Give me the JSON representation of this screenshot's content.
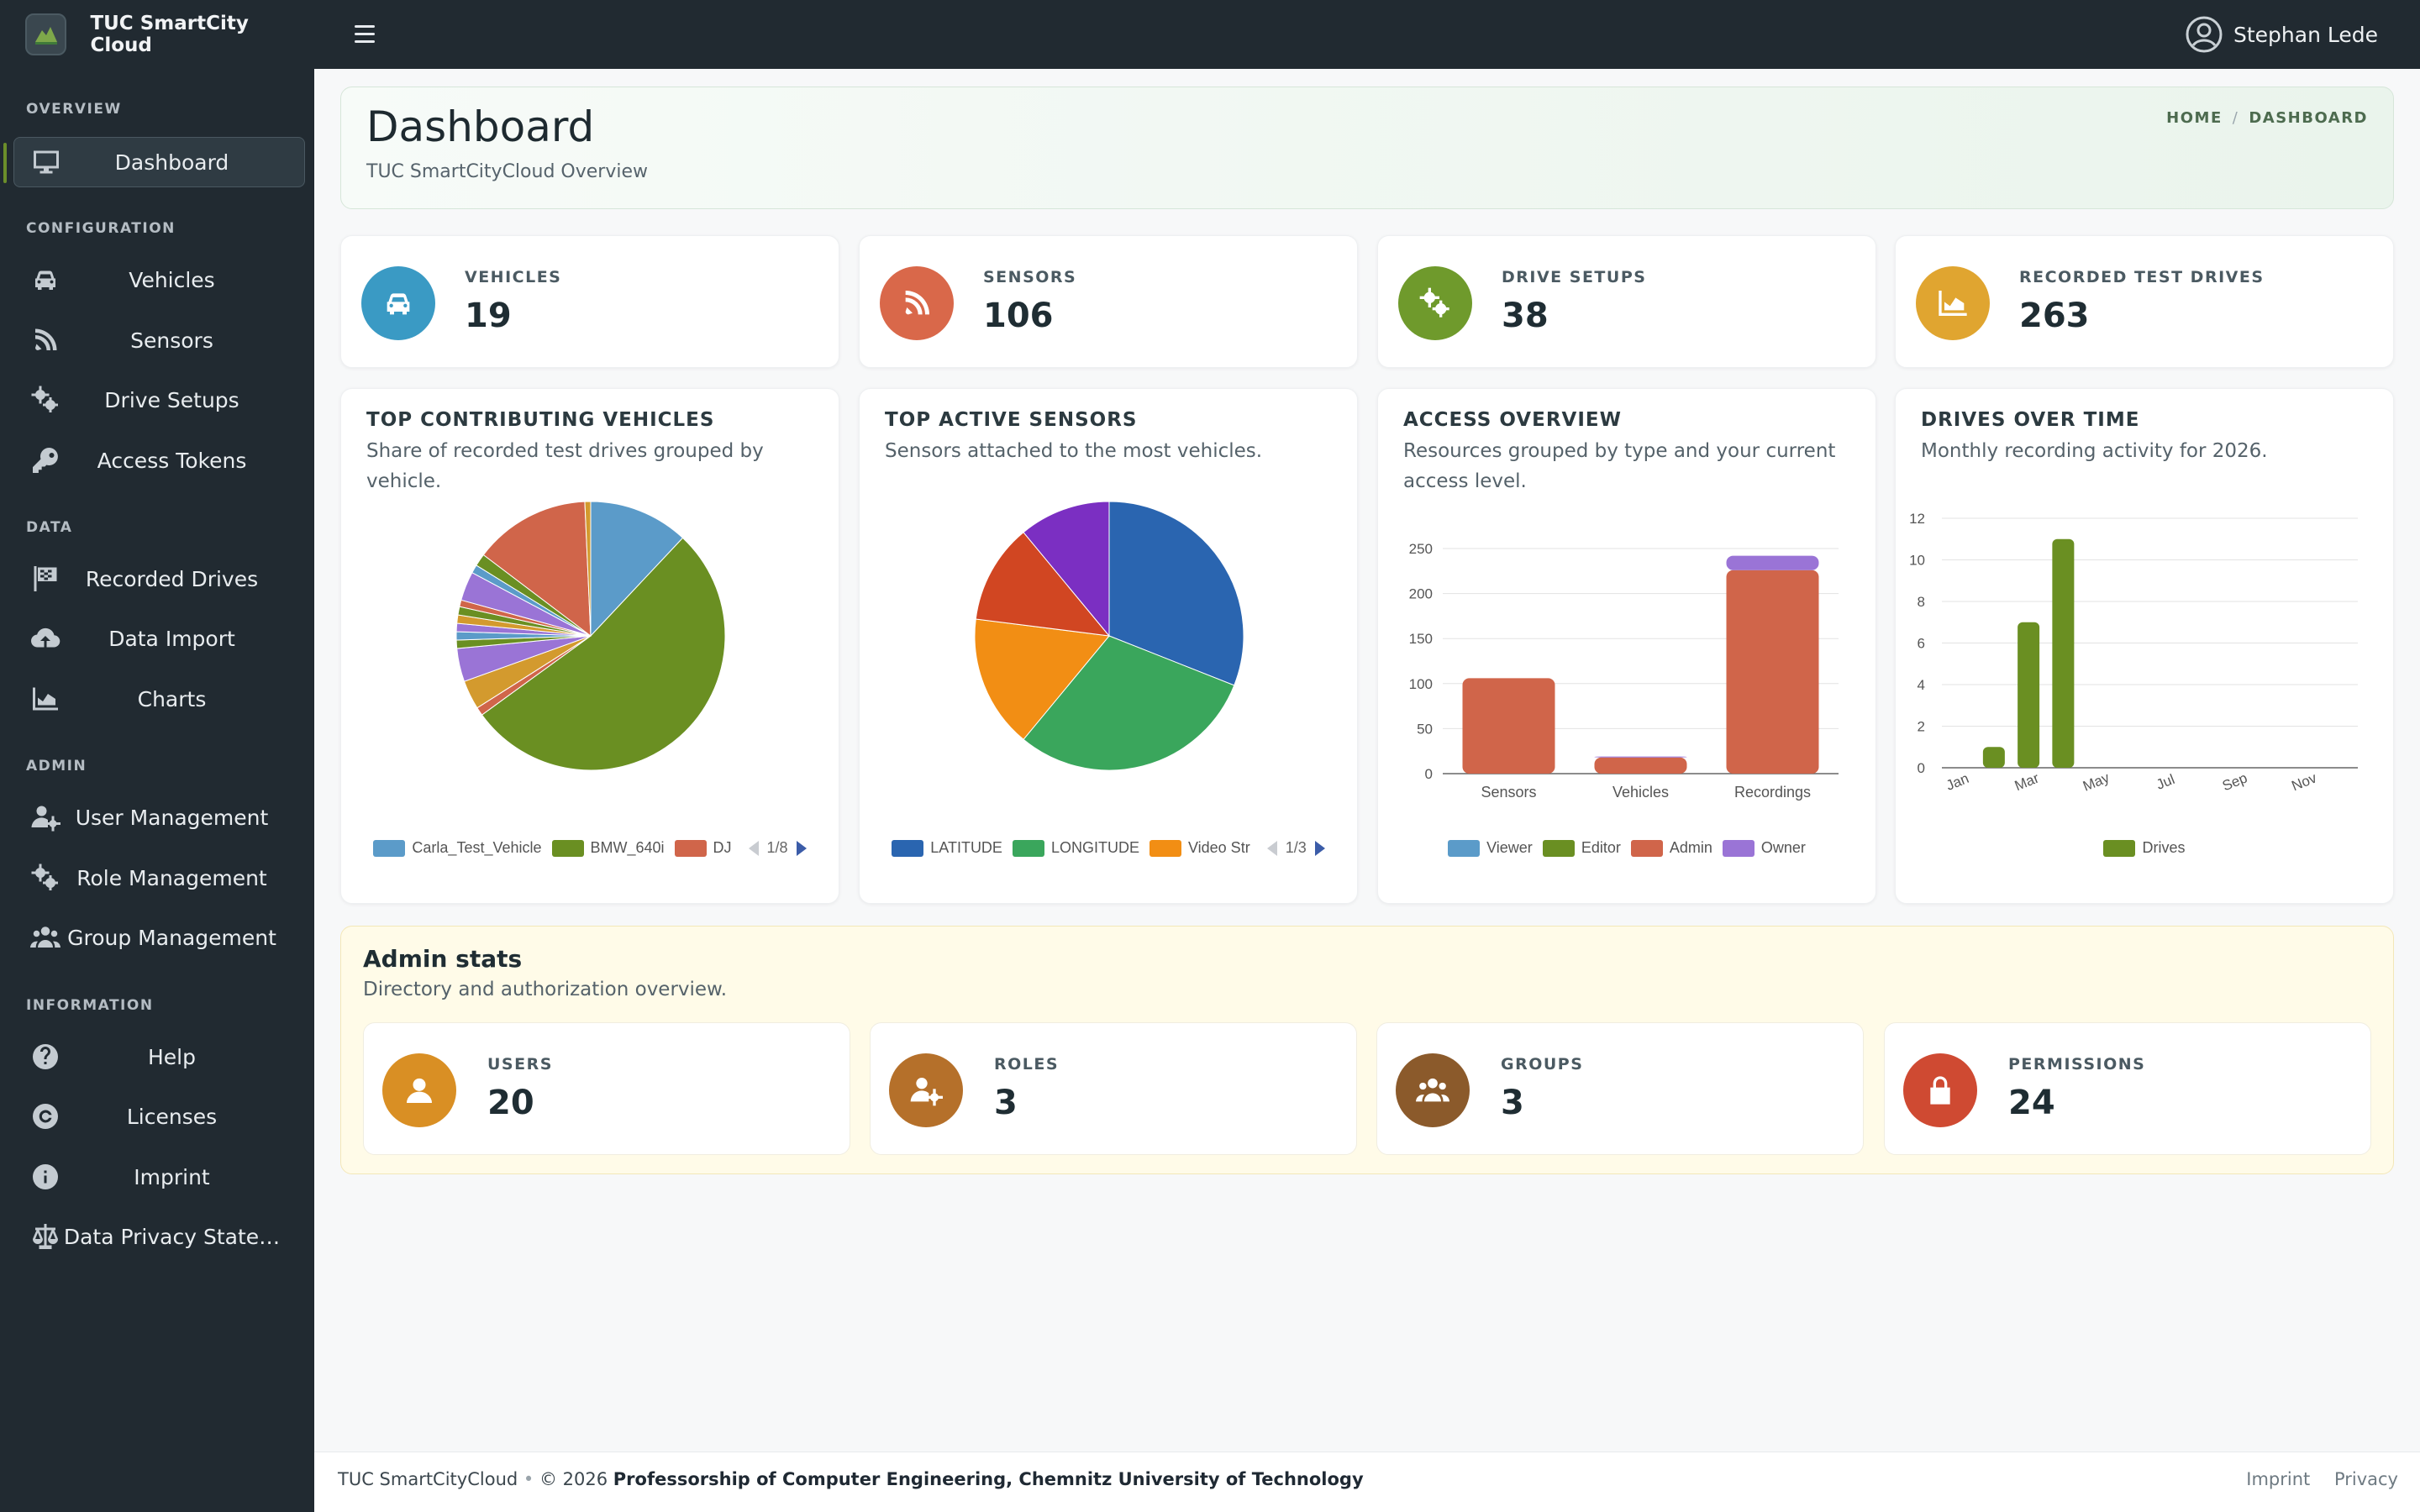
{
  "app": {
    "brand": "TUC SmartCity Cloud",
    "user": "Stephan Lede"
  },
  "sidebar": {
    "sections": {
      "overview": "OVERVIEW",
      "configuration": "CONFIGURATION",
      "data": "DATA",
      "admin": "ADMIN",
      "information": "INFORMATION"
    },
    "items": {
      "dashboard": "Dashboard",
      "vehicles": "Vehicles",
      "sensors": "Sensors",
      "drive_setups": "Drive Setups",
      "access_tokens": "Access Tokens",
      "recorded_drives": "Recorded Drives",
      "data_import": "Data Import",
      "charts": "Charts",
      "user_management": "User Management",
      "role_management": "Role Management",
      "group_management": "Group Management",
      "help": "Help",
      "licenses": "Licenses",
      "imprint": "Imprint",
      "privacy": "Data Privacy State…"
    }
  },
  "header": {
    "title": "Dashboard",
    "subtitle": "TUC SmartCityCloud Overview",
    "breadcrumb_home": "HOME",
    "breadcrumb_current": "DASHBOARD"
  },
  "stats": [
    {
      "label": "VEHICLES",
      "value": "19",
      "color": "#3a9ac4",
      "icon": "car-icon"
    },
    {
      "label": "SENSORS",
      "value": "106",
      "color": "#d9684a",
      "icon": "satellite-dish-icon"
    },
    {
      "label": "DRIVE SETUPS",
      "value": "38",
      "color": "#6f9a2c",
      "icon": "gears-icon"
    },
    {
      "label": "RECORDED TEST DRIVES",
      "value": "263",
      "color": "#e0a530",
      "icon": "chart-area-icon"
    }
  ],
  "cards": {
    "vehicles": {
      "title": "TOP CONTRIBUTING VEHICLES",
      "subtitle": "Share of recorded test drives grouped by vehicle.",
      "pager": "1/8"
    },
    "sensors": {
      "title": "TOP ACTIVE SENSORS",
      "subtitle": "Sensors attached to the most vehicles.",
      "pager": "1/3"
    },
    "access": {
      "title": "ACCESS OVERVIEW",
      "subtitle": "Resources grouped by type and your current access level."
    },
    "drives": {
      "title": "DRIVES OVER TIME",
      "subtitle": "Monthly recording activity for 2026."
    }
  },
  "admin": {
    "title": "Admin stats",
    "subtitle": "Directory and authorization overview.",
    "items": [
      {
        "label": "USERS",
        "value": "20",
        "color": "#d98f24",
        "icon": "user-icon"
      },
      {
        "label": "ROLES",
        "value": "3",
        "color": "#b5702a",
        "icon": "user-gear-icon"
      },
      {
        "label": "GROUPS",
        "value": "3",
        "color": "#8b5a2b",
        "icon": "users-icon"
      },
      {
        "label": "PERMISSIONS",
        "value": "24",
        "color": "#cf4a32",
        "icon": "lock-icon"
      }
    ]
  },
  "footer": {
    "brand": "TUC SmartCityCloud",
    "copyright": "© 2026",
    "org": "Professorship of Computer Engineering, Chemnitz University of Technology",
    "imprint": "Imprint",
    "privacy": "Privacy"
  },
  "chart_data": [
    {
      "type": "pie",
      "title": "TOP CONTRIBUTING VEHICLES",
      "legend_visible": [
        "Carla_Test_Vehicle",
        "BMW_640i",
        "DJ"
      ],
      "slices": [
        {
          "name": "Carla_Test_Vehicle",
          "value": 12,
          "color": "#5b9bc9"
        },
        {
          "name": "BMW_640i",
          "value": 53,
          "color": "#6a8f22"
        },
        {
          "name": "",
          "value": 1,
          "color": "#d0654a"
        },
        {
          "name": "",
          "value": 3.5,
          "color": "#d39a2e"
        },
        {
          "name": "",
          "value": 4,
          "color": "#9a74d6"
        },
        {
          "name": "",
          "value": 1,
          "color": "#6a8f22"
        },
        {
          "name": "",
          "value": 1,
          "color": "#5b9bc9"
        },
        {
          "name": "",
          "value": 1,
          "color": "#9a74d6"
        },
        {
          "name": "",
          "value": 1,
          "color": "#d39a2e"
        },
        {
          "name": "",
          "value": 1,
          "color": "#6a8f22"
        },
        {
          "name": "",
          "value": 0.8,
          "color": "#d0654a"
        },
        {
          "name": "",
          "value": 3.5,
          "color": "#9a74d6"
        },
        {
          "name": "",
          "value": 1,
          "color": "#5b9bc9"
        },
        {
          "name": "",
          "value": 1.5,
          "color": "#6a8f22"
        },
        {
          "name": "DJ",
          "value": 14,
          "color": "#d0654a"
        },
        {
          "name": "",
          "value": 0.7,
          "color": "#d39a2e"
        }
      ]
    },
    {
      "type": "pie",
      "title": "TOP ACTIVE SENSORS",
      "legend_visible": [
        "LATITUDE",
        "LONGITUDE",
        "Video Str"
      ],
      "slices": [
        {
          "name": "LATITUDE",
          "value": 31,
          "color": "#2a65b0"
        },
        {
          "name": "LONGITUDE",
          "value": 30,
          "color": "#3aa65c"
        },
        {
          "name": "Video Str",
          "value": 16,
          "color": "#f28e14"
        },
        {
          "name": "",
          "value": 12,
          "color": "#d14622"
        },
        {
          "name": "",
          "value": 11,
          "color": "#7b2fc2"
        }
      ]
    },
    {
      "type": "bar",
      "stacked": true,
      "title": "ACCESS OVERVIEW",
      "categories": [
        "Sensors",
        "Vehicles",
        "Recordings"
      ],
      "ylim": [
        0,
        250
      ],
      "yticks": [
        0,
        50,
        100,
        150,
        200,
        250
      ],
      "series": [
        {
          "name": "Viewer",
          "color": "#5b9bc9",
          "values": [
            0,
            0,
            0
          ]
        },
        {
          "name": "Editor",
          "color": "#6a8f22",
          "values": [
            0,
            0,
            0
          ]
        },
        {
          "name": "Admin",
          "color": "#d0654a",
          "values": [
            106,
            18,
            226
          ]
        },
        {
          "name": "Owner",
          "color": "#9a74d6",
          "values": [
            0,
            1,
            16
          ]
        }
      ]
    },
    {
      "type": "bar",
      "title": "DRIVES OVER TIME",
      "categories": [
        "Jan",
        "Feb",
        "Mar",
        "Apr",
        "May",
        "Jun",
        "Jul",
        "Aug",
        "Sep",
        "Oct",
        "Nov",
        "Dec"
      ],
      "tick_labels": [
        "Jan",
        "Mar",
        "May",
        "Jul",
        "Sep",
        "Nov"
      ],
      "ylim": [
        0,
        12
      ],
      "yticks": [
        0,
        2,
        4,
        6,
        8,
        10,
        12
      ],
      "series": [
        {
          "name": "Drives",
          "color": "#6a8f22",
          "values": [
            0,
            1,
            7,
            11,
            0,
            0,
            0,
            0,
            0,
            0,
            0,
            0
          ]
        }
      ]
    }
  ]
}
